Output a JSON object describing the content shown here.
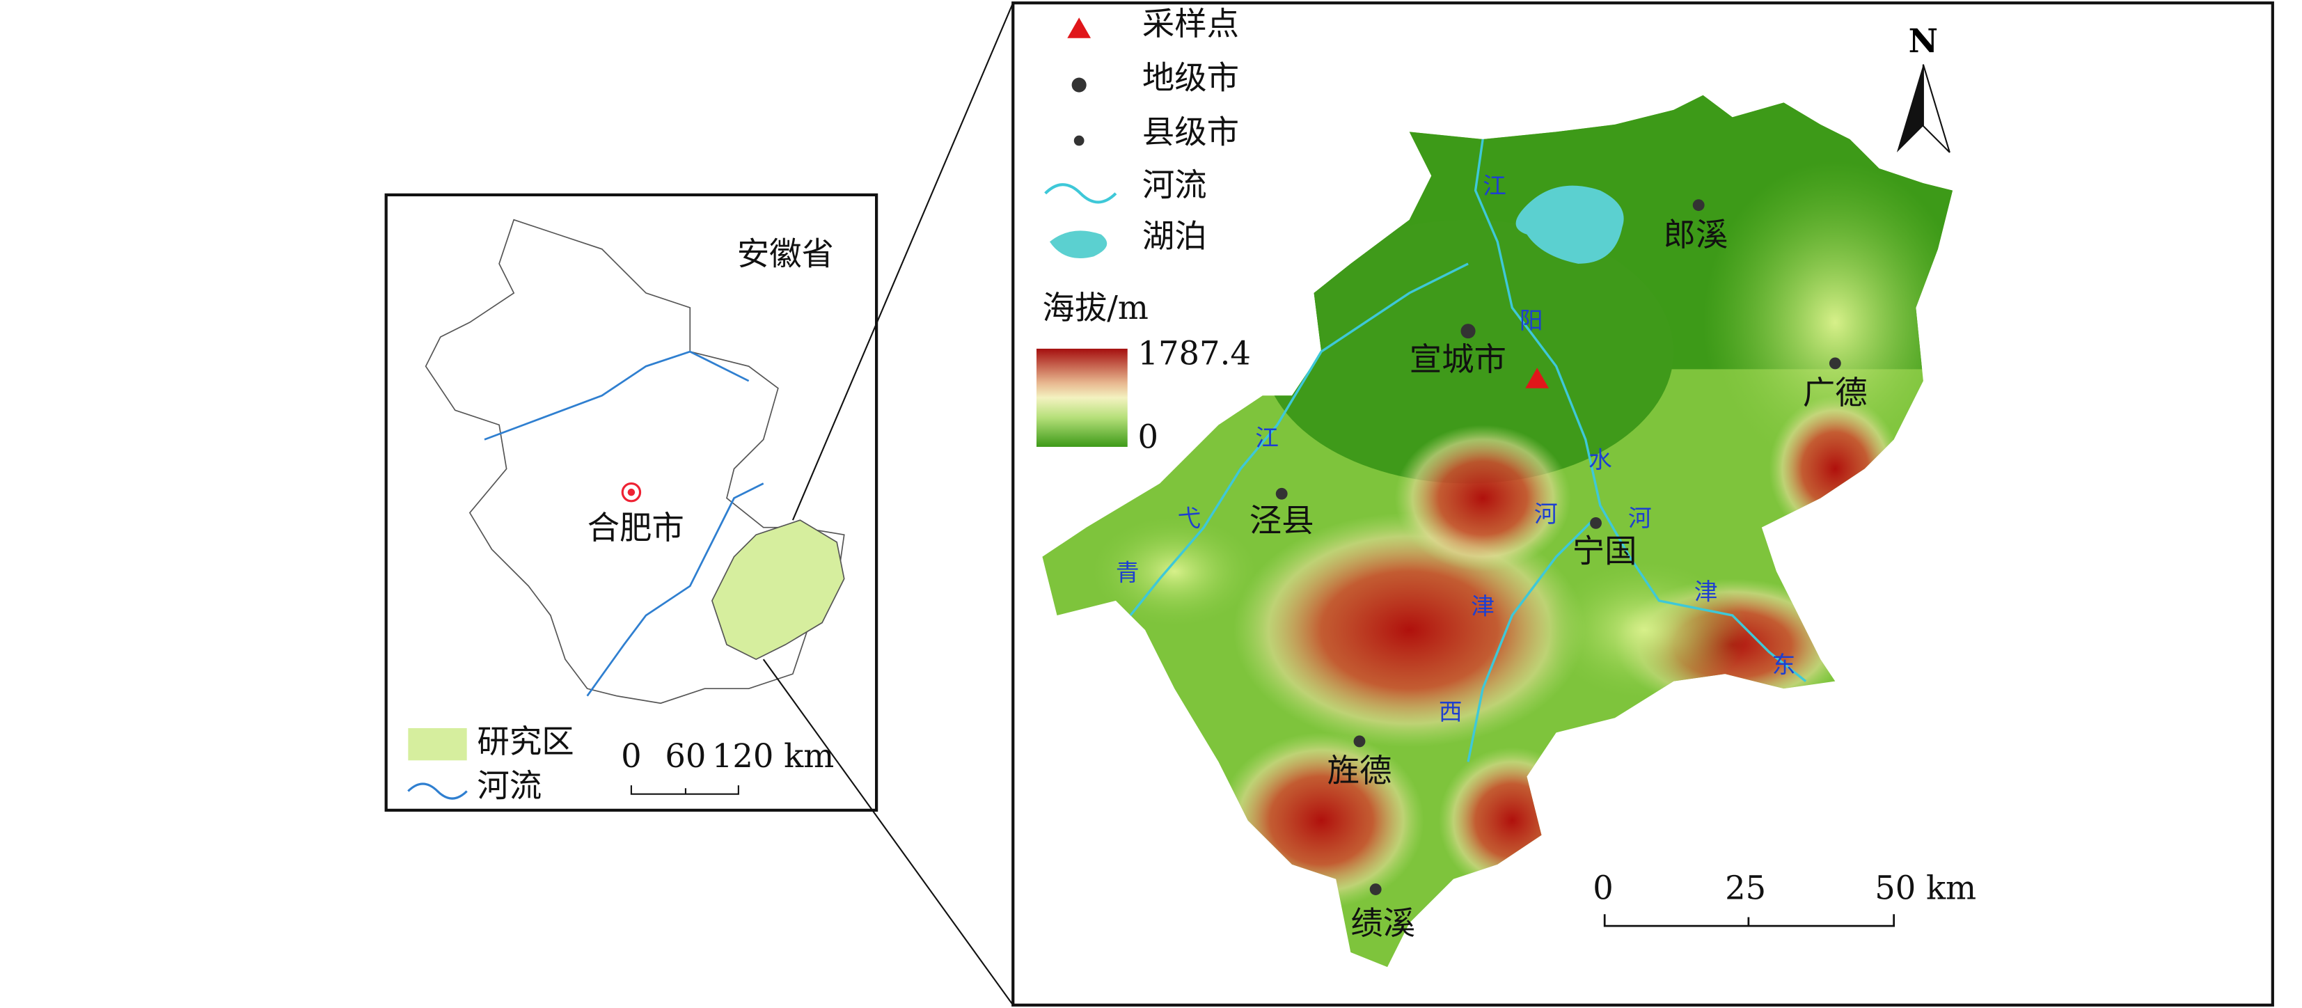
{
  "inset": {
    "title": "安徽省",
    "city": "合肥市",
    "legend": [
      "研究区",
      "河流"
    ],
    "scale": [
      "0",
      "60",
      "120 km"
    ]
  },
  "main": {
    "legend": [
      "采样点",
      "地级市",
      "县级市",
      "河流",
      "湖泊"
    ],
    "elevation": {
      "title": "海拔/m",
      "max": "1787.4",
      "min": "0"
    },
    "cities": [
      "郎溪",
      "宣城市",
      "广德",
      "泾县",
      "宁国",
      "旌德",
      "绩溪"
    ],
    "rivers": [
      {
        "chars": [
          "水",
          "阳",
          "江"
        ]
      },
      {
        "chars": [
          "青",
          "弋",
          "江"
        ]
      },
      {
        "chars": [
          "西",
          "津",
          "河"
        ]
      },
      {
        "chars": [
          "东",
          "津",
          "河"
        ]
      }
    ],
    "scale": [
      "0",
      "25",
      "50 km"
    ],
    "north": "N"
  }
}
